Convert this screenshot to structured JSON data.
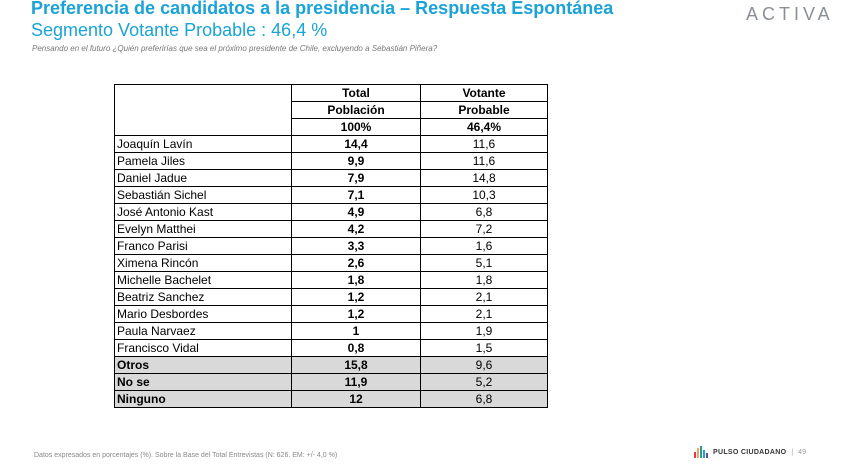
{
  "header": {
    "title": "Preferencia de candidatos a la presidencia – Respuesta Espontánea",
    "subtitle": "Segmento Votante Probable : 46,4 %",
    "question": "Pensando en el futuro ¿Quién preferirías que sea el próximo presidente de Chile, excluyendo a Sebastián Piñera?",
    "logo": "ACTIVA"
  },
  "table": {
    "col1_header": [
      "Total",
      "Población",
      "100%"
    ],
    "col2_header": [
      "Votante",
      "Probable",
      "46,4%"
    ],
    "rows": [
      {
        "name": "Joaquín Lavín",
        "total": "14,4",
        "probable": "11,6"
      },
      {
        "name": "Pamela Jiles",
        "total": "9,9",
        "probable": "11,6"
      },
      {
        "name": "Daniel Jadue",
        "total": "7,9",
        "probable": "14,8"
      },
      {
        "name": "Sebastián Sichel",
        "total": "7,1",
        "probable": "10,3"
      },
      {
        "name": "José Antonio Kast",
        "total": "4,9",
        "probable": "6,8"
      },
      {
        "name": "Evelyn Matthei",
        "total": "4,2",
        "probable": "7,2"
      },
      {
        "name": "Franco Parisi",
        "total": "3,3",
        "probable": "1,6"
      },
      {
        "name": "Ximena Rincón",
        "total": "2,6",
        "probable": "5,1"
      },
      {
        "name": "Michelle Bachelet",
        "total": "1,8",
        "probable": "1,8"
      },
      {
        "name": "Beatriz Sanchez",
        "total": "1,2",
        "probable": "2,1"
      },
      {
        "name": "Mario Desbordes",
        "total": "1,2",
        "probable": "2,1"
      },
      {
        "name": "Paula Narvaez",
        "total": "1",
        "probable": "1,9"
      },
      {
        "name": "Francisco Vidal",
        "total": "0,8",
        "probable": "1,5"
      }
    ],
    "summary_rows": [
      {
        "name": "Otros",
        "total": "15,8",
        "probable": "9,6"
      },
      {
        "name": "No se",
        "total": "11,9",
        "probable": "5,2"
      },
      {
        "name": "Ninguno",
        "total": "12",
        "probable": "6,8"
      }
    ]
  },
  "footer": {
    "note": "Datos expresados en porcentajes (%). Sobre la Base del Total Entrevistas (N: 626. EM: +/- 4,0 %)",
    "brand": "PULSO CIUDADANO",
    "separator": "|",
    "page_number": "49",
    "brand_icon": "bar-chart-icon",
    "brand_icon_colors": [
      "#e63946",
      "#f4a261",
      "#2a9d8f",
      "#1aa3d6",
      "#6a4c93"
    ]
  }
}
